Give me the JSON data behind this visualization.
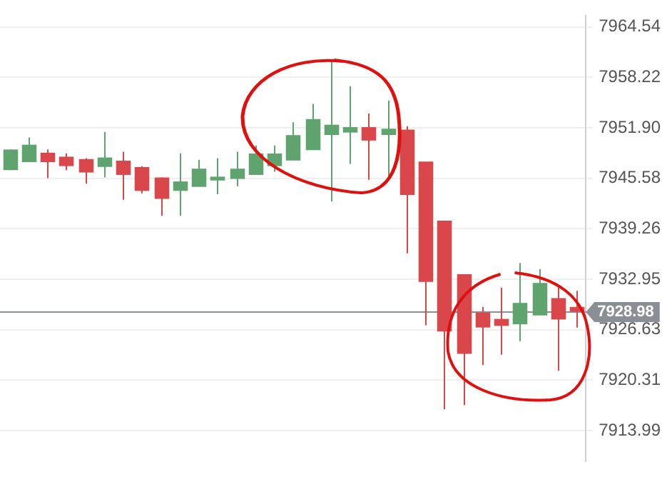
{
  "chart_data": {
    "type": "candlestick",
    "categories": [
      null,
      null,
      null,
      null,
      null,
      null,
      null,
      null,
      null,
      null,
      null,
      null,
      null,
      null,
      null,
      null,
      null,
      null,
      null,
      null,
      null,
      null,
      null,
      null,
      null,
      null,
      null,
      null,
      null,
      null,
      null
    ],
    "ohlc": [
      [
        7946.7,
        7949.2,
        7946.6,
        7949.1
      ],
      [
        7947.7,
        7950.7,
        7947.7,
        7949.7
      ],
      [
        7948.7,
        7949.2,
        7945.6,
        7947.7
      ],
      [
        7948.2,
        7948.7,
        7946.6,
        7947.2
      ],
      [
        7947.9,
        7948.1,
        7944.9,
        7946.4
      ],
      [
        7947.1,
        7951.4,
        7945.7,
        7948.1
      ],
      [
        7947.7,
        7948.9,
        7942.9,
        7946.1
      ],
      [
        7946.9,
        7947.1,
        7943.7,
        7944.1
      ],
      [
        7945.6,
        7945.7,
        7940.9,
        7943.1
      ],
      [
        7944.1,
        7948.7,
        7940.9,
        7945.1
      ],
      [
        7944.6,
        7947.9,
        7944.6,
        7946.7
      ],
      [
        7945.4,
        7948.1,
        7943.6,
        7945.7
      ],
      [
        7945.6,
        7948.9,
        7944.6,
        7946.7
      ],
      [
        7946.1,
        7949.7,
        7946.1,
        7948.6
      ],
      [
        7947.2,
        7949.7,
        7946.4,
        7948.6
      ],
      [
        7947.9,
        7952.6,
        7947.9,
        7950.9
      ],
      [
        7949.2,
        7954.9,
        7949.2,
        7952.9
      ],
      [
        7951.1,
        7960.4,
        7942.7,
        7952.2
      ],
      [
        7951.4,
        7957.1,
        7947.4,
        7951.9
      ],
      [
        7951.9,
        7953.7,
        7945.4,
        7950.4
      ],
      [
        7951.1,
        7955.3,
        7945.4,
        7951.7
      ],
      [
        7951.6,
        7952.1,
        7936.2,
        7943.6
      ],
      [
        7947.6,
        7947.6,
        7927.2,
        7932.7
      ],
      [
        7940.2,
        7940.2,
        7916.7,
        7926.5
      ],
      [
        7933.5,
        7933.5,
        7917.2,
        7923.7
      ],
      [
        7928.7,
        7929.5,
        7922.2,
        7927.0
      ],
      [
        7927.9,
        7931.9,
        7923.5,
        7927.2
      ],
      [
        7927.4,
        7935.0,
        7925.2,
        7929.9
      ],
      [
        7928.5,
        7934.2,
        7928.5,
        7932.4
      ],
      [
        7930.5,
        7932.0,
        7921.5,
        7928.0
      ],
      [
        7929.4,
        7931.5,
        7926.9,
        7928.98
      ]
    ],
    "ylim": [
      7910.2,
      7965.9
    ],
    "yticks": [
      {
        "value": 7913.99,
        "label": "7913.99"
      },
      {
        "value": 7920.31,
        "label": "7920.31"
      },
      {
        "value": 7926.63,
        "label": "7926.63"
      },
      {
        "value": 7932.95,
        "label": "7932.95"
      },
      {
        "value": 7939.26,
        "label": "7939.26"
      },
      {
        "value": 7945.58,
        "label": "7945.58"
      },
      {
        "value": 7951.9,
        "label": "7951.90"
      },
      {
        "value": 7958.22,
        "label": "7958.22"
      },
      {
        "value": 7964.54,
        "label": "7964.54"
      }
    ],
    "ref_lines": [
      {
        "axis": "y",
        "value": 7928.98,
        "label": "7928.98",
        "color": "#8a8f96"
      }
    ],
    "grid": "y"
  }
}
